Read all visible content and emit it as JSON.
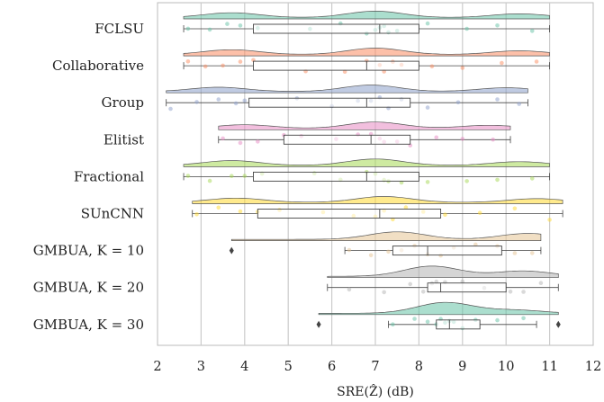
{
  "chart_data": {
    "type": "raincloud",
    "title": "",
    "xlabel": "SRE(Ẑ) (dB)",
    "xlim": [
      2,
      12
    ],
    "xticks": [
      2,
      3,
      4,
      5,
      6,
      7,
      8,
      9,
      10,
      11,
      12
    ],
    "grid": "vertical",
    "series": [
      {
        "name": "FCLSU",
        "color": "#66c2a5",
        "whisker": [
          2.6,
          11.0
        ],
        "box": [
          4.2,
          8.0
        ],
        "median": 7.1,
        "outliers": [],
        "density_peaks": [
          [
            3.7,
            0.45
          ],
          [
            7.0,
            0.6
          ],
          [
            10.3,
            0.35
          ]
        ],
        "points": [
          2.7,
          3.2,
          3.6,
          3.9,
          4.3,
          5.5,
          6.2,
          6.8,
          7.0,
          7.1,
          7.2,
          7.3,
          7.5,
          8.2,
          9.1,
          9.8,
          10.6
        ]
      },
      {
        "name": "Collaborative",
        "color": "#fc8d62",
        "whisker": [
          2.6,
          11.0
        ],
        "box": [
          4.2,
          8.0
        ],
        "median": 6.8,
        "outliers": [],
        "density_peaks": [
          [
            3.7,
            0.45
          ],
          [
            7.0,
            0.6
          ],
          [
            10.3,
            0.35
          ]
        ],
        "points": [
          2.7,
          3.1,
          3.5,
          3.9,
          4.2,
          5.4,
          6.3,
          6.8,
          7.1,
          7.2,
          7.4,
          7.6,
          8.3,
          9.0,
          9.9,
          10.7
        ]
      },
      {
        "name": "Group",
        "color": "#8da0cb",
        "whisker": [
          2.2,
          10.5
        ],
        "box": [
          4.1,
          7.8
        ],
        "median": 6.8,
        "outliers": [],
        "density_peaks": [
          [
            3.4,
            0.4
          ],
          [
            6.9,
            0.6
          ],
          [
            10.0,
            0.35
          ]
        ],
        "points": [
          2.3,
          2.9,
          3.4,
          3.8,
          4.0,
          5.2,
          6.0,
          6.6,
          6.9,
          7.1,
          7.3,
          7.6,
          8.2,
          8.9,
          9.8,
          10.3
        ]
      },
      {
        "name": "Elitist",
        "color": "#e78ac3",
        "whisker": [
          3.4,
          10.1
        ],
        "box": [
          4.9,
          7.8
        ],
        "median": 6.9,
        "outliers": [],
        "density_peaks": [
          [
            4.0,
            0.35
          ],
          [
            7.0,
            0.6
          ],
          [
            9.6,
            0.3
          ]
        ],
        "points": [
          3.5,
          3.9,
          4.3,
          4.9,
          5.3,
          6.1,
          6.6,
          6.9,
          7.1,
          7.2,
          7.5,
          7.8,
          8.4,
          9.0,
          9.7
        ]
      },
      {
        "name": "Fractional",
        "color": "#a6d854",
        "whisker": [
          2.6,
          11.0
        ],
        "box": [
          4.2,
          8.0
        ],
        "median": 6.8,
        "outliers": [],
        "density_peaks": [
          [
            3.7,
            0.45
          ],
          [
            7.0,
            0.6
          ],
          [
            10.3,
            0.35
          ]
        ],
        "points": [
          2.7,
          3.2,
          3.7,
          4.0,
          4.4,
          5.6,
          6.2,
          6.8,
          7.0,
          7.2,
          7.3,
          7.6,
          8.2,
          9.1,
          9.8,
          10.6
        ]
      },
      {
        "name": "SUnCNN",
        "color": "#ffd92f",
        "whisker": [
          2.8,
          11.3
        ],
        "box": [
          4.3,
          8.5
        ],
        "median": 7.1,
        "outliers": [],
        "density_peaks": [
          [
            3.8,
            0.4
          ],
          [
            7.2,
            0.55
          ],
          [
            10.7,
            0.35
          ]
        ],
        "points": [
          2.9,
          3.4,
          3.9,
          4.3,
          4.8,
          5.8,
          6.5,
          7.0,
          7.2,
          7.4,
          7.7,
          8.1,
          8.6,
          9.4,
          10.2,
          11.0
        ]
      },
      {
        "name": "GMBUA, K = 10",
        "color": "#e5c494",
        "whisker": [
          6.3,
          10.8
        ],
        "box": [
          7.4,
          9.9
        ],
        "median": 8.2,
        "outliers": [
          3.7
        ],
        "density_peaks": [
          [
            7.5,
            0.7
          ],
          [
            10.5,
            0.55
          ]
        ],
        "points": [
          6.4,
          6.9,
          7.3,
          7.6,
          7.9,
          8.2,
          8.5,
          8.8,
          9.3,
          9.8,
          10.2,
          10.6
        ]
      },
      {
        "name": "GMBUA, K = 20",
        "color": "#b3b3b3",
        "whisker": [
          5.9,
          11.2
        ],
        "box": [
          8.2,
          10.0
        ],
        "median": 8.5,
        "outliers": [],
        "density_peaks": [
          [
            8.3,
            0.95
          ],
          [
            10.4,
            0.5
          ]
        ],
        "points": [
          6.4,
          7.2,
          7.8,
          8.1,
          8.3,
          8.4,
          8.6,
          9.0,
          9.5,
          10.1,
          10.4,
          10.8
        ]
      },
      {
        "name": "GMBUA, K = 30",
        "color": "#66c2a5",
        "whisker": [
          7.3,
          10.7
        ],
        "box": [
          8.4,
          9.4
        ],
        "median": 8.7,
        "outliers": [
          5.7,
          11.2
        ],
        "density_peaks": [
          [
            8.6,
            1.0
          ],
          [
            10.2,
            0.3
          ]
        ],
        "points": [
          7.4,
          7.9,
          8.2,
          8.4,
          8.5,
          8.6,
          8.7,
          8.8,
          9.0,
          9.3,
          9.8,
          10.4
        ]
      }
    ]
  }
}
